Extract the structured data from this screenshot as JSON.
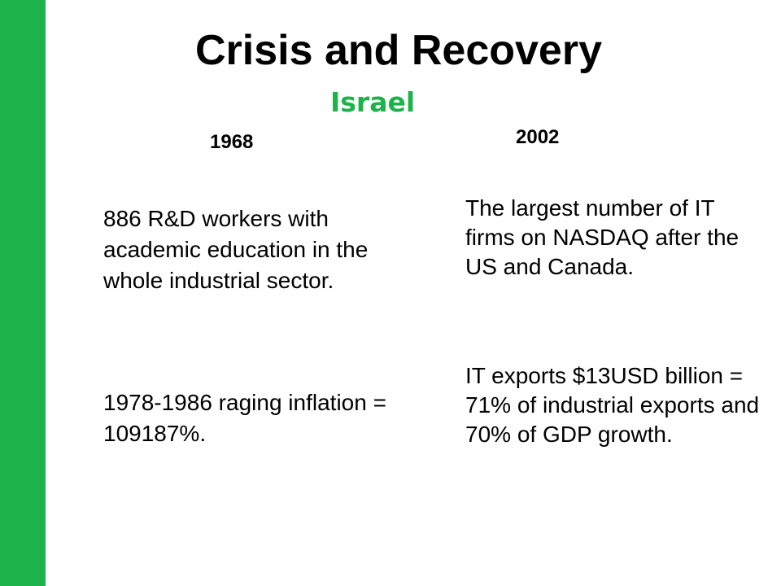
{
  "slide": {
    "title": "Crisis and Recovery",
    "subtitle": "Israel",
    "accent_color": "#1db34a",
    "left_column": {
      "heading": "1968",
      "paragraphs": [
        "886 R&D workers with academic education in the whole industrial sector.",
        "1978-1986 raging inflation = 109187%."
      ]
    },
    "right_column": {
      "heading": "2002",
      "paragraphs": [
        "The largest number of IT firms on NASDAQ after the US and Canada.",
        "IT exports $13USD billion = 71% of industrial exports and 70% of GDP growth."
      ]
    }
  }
}
